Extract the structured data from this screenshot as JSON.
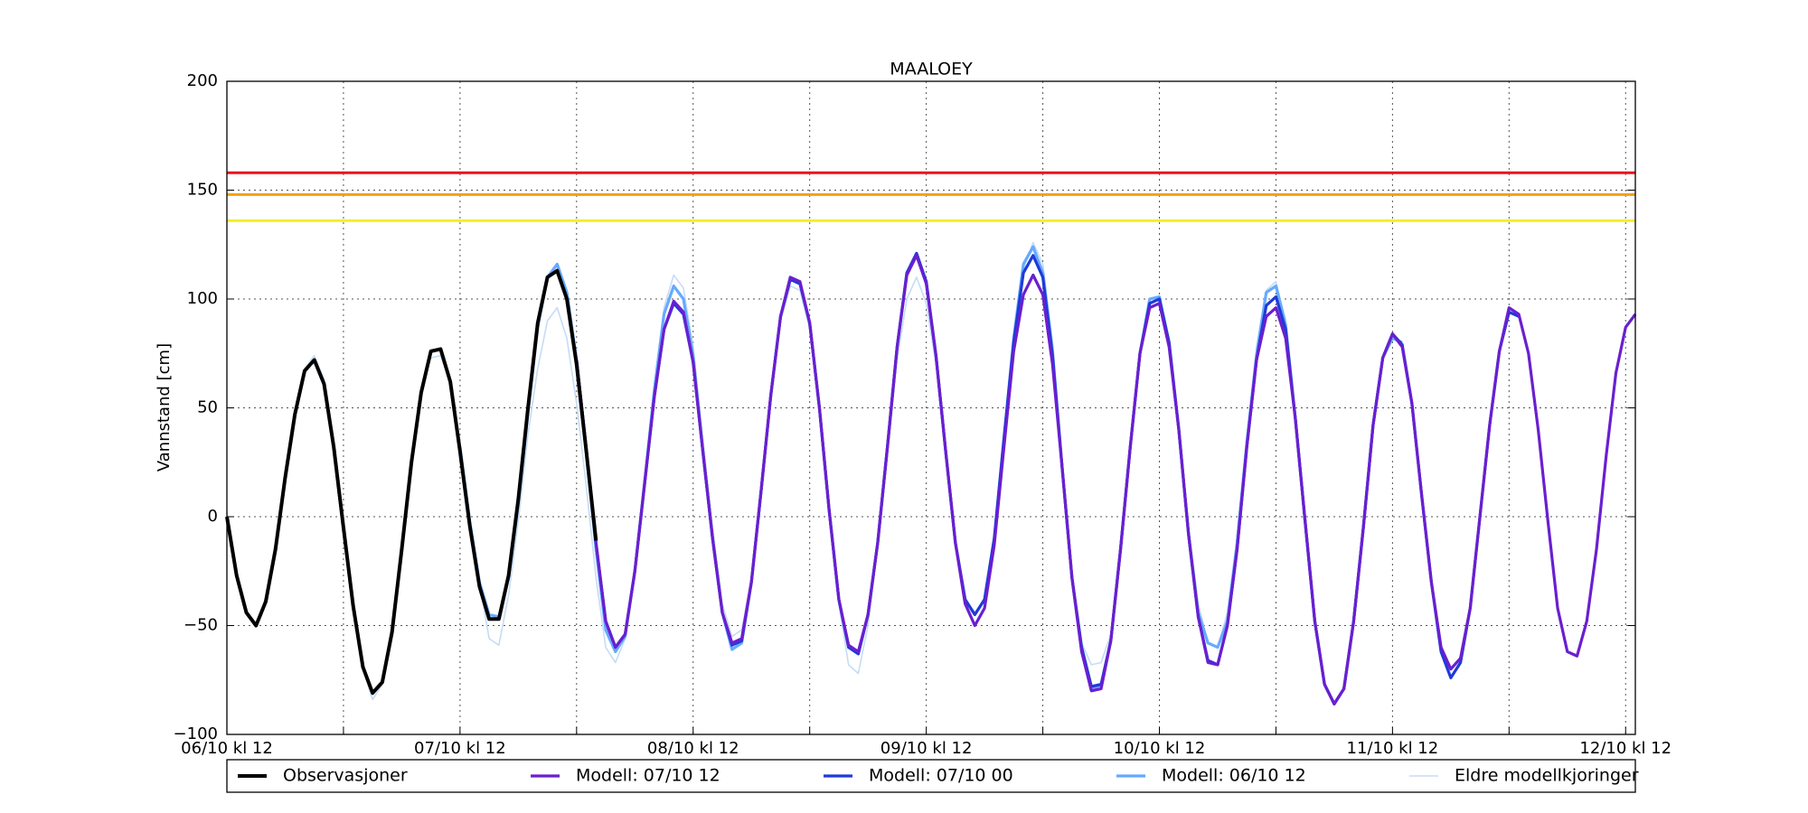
{
  "chart_data": {
    "type": "line",
    "title": "MAALOEY",
    "y_label": "Vannstand [cm]",
    "x": [
      0,
      1,
      2,
      3,
      4,
      5,
      6,
      7,
      8,
      9,
      10,
      11,
      12,
      13,
      14,
      15,
      16,
      17,
      18,
      19,
      20,
      21,
      22,
      23,
      24,
      25,
      26,
      27,
      28,
      29,
      30,
      31,
      32,
      33,
      34,
      35,
      36,
      37,
      38,
      39,
      40,
      41,
      42,
      43,
      44,
      45,
      46,
      47,
      48,
      49,
      50,
      51,
      52,
      53,
      54,
      55,
      56,
      57,
      58,
      59,
      60,
      61,
      62,
      63,
      64,
      65,
      66,
      67,
      68,
      69,
      70,
      71,
      72,
      73,
      74,
      75,
      76,
      77,
      78,
      79,
      80,
      81,
      82,
      83,
      84,
      85,
      86,
      87,
      88,
      89,
      90,
      91,
      92,
      93,
      94,
      95,
      96,
      97,
      98,
      99,
      100,
      101,
      102,
      103,
      104,
      105,
      106,
      107,
      108,
      109,
      110,
      111,
      112,
      113,
      114,
      115,
      116,
      117,
      118,
      119,
      120,
      121,
      122,
      123,
      124,
      125,
      126,
      127,
      128,
      129,
      130,
      131,
      132,
      133,
      134,
      135,
      136,
      137,
      138,
      139,
      140,
      141,
      142,
      143,
      144,
      145
    ],
    "xlim": [
      0,
      145
    ],
    "xticks": [
      {
        "value": 0,
        "label": "06/10 kl 12"
      },
      {
        "value": 24,
        "label": "07/10 kl 12"
      },
      {
        "value": 48,
        "label": "08/10 kl 12"
      },
      {
        "value": 72,
        "label": "09/10 kl 12"
      },
      {
        "value": 96,
        "label": "10/10 kl 12"
      },
      {
        "value": 120,
        "label": "11/10 kl 12"
      },
      {
        "value": 144,
        "label": "12/10 kl 12"
      }
    ],
    "xticks_minor": [
      12,
      36,
      60,
      84,
      108,
      132
    ],
    "ylim": [
      -100,
      200
    ],
    "yticks": [
      {
        "value": -100,
        "label": "−100"
      },
      {
        "value": -50,
        "label": "−50"
      },
      0,
      50,
      100,
      150,
      200
    ],
    "grid": true,
    "reference_lines": [
      {
        "value": 158,
        "color": "#e8141a"
      },
      {
        "value": 148,
        "color": "#f5a200"
      },
      {
        "value": 136,
        "color": "#f2ee2a"
      }
    ],
    "series": [
      {
        "name": "Observasjoner",
        "color": "#000000",
        "values": [
          0,
          -27,
          -44,
          -50,
          -39,
          -15,
          18,
          47,
          67,
          72,
          61,
          32,
          -5,
          -41,
          -69,
          -81,
          -76,
          -53,
          -15,
          25,
          57,
          76,
          77,
          62,
          30,
          -4,
          -32,
          -47,
          -47,
          -27,
          8,
          50,
          89,
          110,
          113,
          100,
          70,
          30,
          -11,
          null,
          null,
          null,
          null,
          null,
          null,
          null,
          null,
          null,
          null,
          null,
          null,
          null,
          null,
          null,
          null,
          null,
          null,
          null,
          null,
          null,
          null,
          null,
          null,
          null,
          null,
          null,
          null,
          null,
          null,
          null,
          null,
          null,
          null,
          null,
          null,
          null,
          null,
          null,
          null,
          null,
          null,
          null,
          null,
          null,
          null,
          null,
          null,
          null,
          null,
          null,
          null,
          null,
          null,
          null,
          null,
          null,
          null,
          null,
          null,
          null,
          null,
          null,
          null,
          null,
          null,
          null,
          null,
          null,
          null,
          null,
          null,
          null,
          null,
          null,
          null,
          null,
          null,
          null,
          null,
          null,
          null,
          null,
          null,
          null,
          null,
          null,
          null,
          null,
          null,
          null,
          null,
          null,
          null,
          null,
          null,
          null,
          null,
          null,
          null,
          null,
          null,
          null,
          null,
          null,
          null,
          null
        ]
      },
      {
        "name": "Modell: 07/10 12",
        "color": "#6a1fd0",
        "values": [
          null,
          null,
          null,
          null,
          null,
          null,
          null,
          null,
          null,
          null,
          null,
          null,
          null,
          null,
          null,
          null,
          null,
          null,
          null,
          null,
          null,
          null,
          null,
          null,
          null,
          null,
          null,
          null,
          null,
          null,
          null,
          null,
          null,
          null,
          null,
          null,
          72,
          31,
          -12,
          -48,
          -60,
          -54,
          -25,
          15,
          55,
          86,
          99,
          94,
          71,
          30,
          -10,
          -44,
          -58,
          -56,
          -30,
          12,
          56,
          92,
          110,
          108,
          89,
          50,
          3,
          -38,
          -59,
          -62,
          -45,
          -12,
          32,
          78,
          111,
          120,
          107,
          74,
          30,
          -12,
          -40,
          -50,
          -42,
          -13,
          32,
          76,
          102,
          111,
          102,
          70,
          22,
          -28,
          -62,
          -80,
          -79,
          -57,
          -15,
          32,
          75,
          96,
          98,
          78,
          40,
          -8,
          -46,
          -67,
          -68,
          -50,
          -15,
          32,
          72,
          92,
          96,
          82,
          45,
          -2,
          -48,
          -77,
          -86,
          -79,
          -48,
          -5,
          42,
          73,
          84,
          78,
          52,
          10,
          -30,
          -60,
          -70,
          -65,
          -42,
          0,
          42,
          76,
          96,
          93,
          75,
          40,
          -2,
          -42,
          -62,
          -64,
          -48,
          -15,
          28,
          66,
          87,
          93
        ]
      },
      {
        "name": "Modell: 07/10 00",
        "color": "#1f3ad8",
        "values": [
          null,
          null,
          null,
          null,
          null,
          null,
          null,
          null,
          null,
          null,
          null,
          null,
          null,
          null,
          null,
          null,
          null,
          null,
          null,
          null,
          null,
          null,
          null,
          null,
          null,
          null,
          null,
          null,
          null,
          null,
          null,
          null,
          null,
          null,
          null,
          null,
          72,
          31,
          -12,
          -48,
          -60,
          -54,
          -25,
          15,
          55,
          86,
          98,
          93,
          71,
          30,
          -10,
          -44,
          -59,
          -57,
          -30,
          12,
          56,
          92,
          109,
          107,
          89,
          50,
          3,
          -38,
          -60,
          -63,
          -45,
          -12,
          32,
          78,
          112,
          121,
          108,
          74,
          30,
          -12,
          -38,
          -45,
          -38,
          -10,
          36,
          80,
          112,
          120,
          110,
          74,
          22,
          -28,
          -60,
          -78,
          -77,
          -57,
          -15,
          32,
          75,
          98,
          100,
          80,
          40,
          -8,
          -46,
          -66,
          -68,
          -50,
          -15,
          32,
          72,
          97,
          101,
          86,
          45,
          -2,
          -48,
          -77,
          -86,
          -79,
          -48,
          -5,
          42,
          73,
          84,
          79,
          52,
          10,
          -30,
          -62,
          -74,
          -67,
          -42,
          0,
          42,
          76,
          94,
          92,
          null,
          null,
          null,
          null,
          null,
          null,
          null,
          null,
          null,
          null,
          null,
          null
        ]
      },
      {
        "name": "Modell: 06/10 12",
        "color": "#66aaff",
        "values": [
          null,
          null,
          null,
          null,
          null,
          null,
          null,
          null,
          null,
          null,
          null,
          null,
          null,
          null,
          null,
          null,
          null,
          null,
          null,
          null,
          null,
          null,
          null,
          null,
          32,
          -2,
          -30,
          -45,
          -46,
          -28,
          6,
          48,
          87,
          110,
          116,
          103,
          72,
          30,
          -15,
          -52,
          -62,
          -55,
          -25,
          15,
          58,
          93,
          106,
          100,
          74,
          30,
          -10,
          -44,
          -61,
          -58,
          -30,
          12,
          56,
          92,
          109,
          107,
          89,
          50,
          3,
          -38,
          -60,
          -63,
          -45,
          -12,
          32,
          78,
          112,
          120,
          108,
          74,
          30,
          -12,
          -38,
          -45,
          -38,
          -10,
          36,
          82,
          116,
          124,
          112,
          76,
          22,
          -28,
          -62,
          -79,
          -78,
          -57,
          -15,
          32,
          75,
          100,
          101,
          80,
          40,
          -8,
          -44,
          -58,
          -60,
          -48,
          -12,
          34,
          74,
          103,
          106,
          88,
          45,
          -2,
          -48,
          -77,
          -86,
          -79,
          -48,
          -5,
          42,
          73,
          82,
          80,
          null,
          null,
          null,
          null,
          null,
          null,
          null,
          null,
          null,
          null,
          null,
          null,
          null,
          null,
          null,
          null,
          null,
          null,
          null,
          null,
          null,
          null,
          null,
          null
        ]
      },
      {
        "name": "Eldre modellkjoringer",
        "color": "#c6dcf5",
        "values": [
          2,
          -26,
          -45,
          -50,
          -37,
          -12,
          20,
          48,
          68,
          74,
          63,
          35,
          -3,
          -40,
          -70,
          -84,
          -77,
          -52,
          -12,
          28,
          58,
          73,
          74,
          62,
          34,
          0,
          -30,
          -56,
          -59,
          -36,
          -2,
          38,
          68,
          90,
          96,
          82,
          52,
          14,
          -28,
          -60,
          -67,
          -56,
          -22,
          20,
          60,
          96,
          111,
          105,
          78,
          36,
          -5,
          -40,
          -55,
          -52,
          -28,
          10,
          54,
          90,
          106,
          104,
          86,
          48,
          2,
          -40,
          -68,
          -72,
          -50,
          -14,
          28,
          72,
          100,
          110,
          98,
          70,
          28,
          -14,
          -38,
          -44,
          -38,
          -10,
          34,
          80,
          114,
          126,
          116,
          80,
          26,
          -26,
          -58,
          -68,
          -67,
          -54,
          -12,
          34,
          76,
          98,
          101,
          80,
          42,
          -5,
          -40,
          -58,
          -60,
          -44,
          -10,
          36,
          78,
          104,
          108,
          90,
          null,
          null,
          null,
          null,
          null,
          null,
          null,
          null,
          null,
          null,
          null,
          null,
          null,
          null,
          null,
          null,
          null,
          null,
          null,
          null,
          null,
          null,
          null,
          null,
          null,
          null,
          null,
          null,
          null,
          null,
          null,
          null,
          null,
          null,
          null,
          null
        ]
      }
    ]
  }
}
